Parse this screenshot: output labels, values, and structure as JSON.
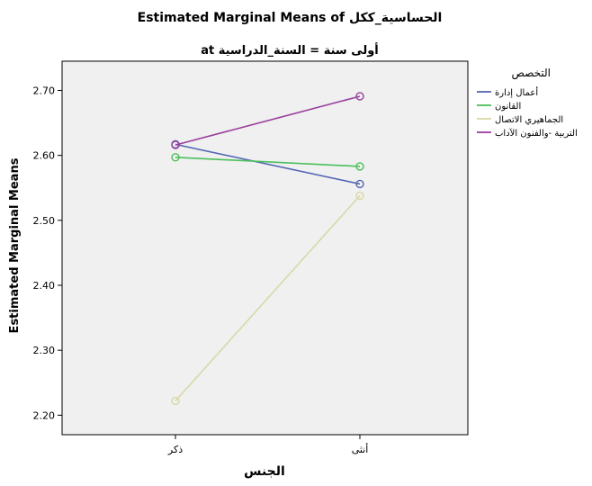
{
  "chart_data": {
    "type": "line",
    "title": "Estimated Marginal Means of الحساسية_ككل",
    "subtitle": "at أولى سنة = السنة_الدراسية",
    "xlabel": "الجنس",
    "ylabel": "Estimated Marginal Means",
    "categories": [
      "ذكر",
      "أنثى"
    ],
    "ylim": [
      2.17,
      2.745
    ],
    "yticks": [
      2.2,
      2.3,
      2.4,
      2.5,
      2.6,
      2.7
    ],
    "ytick_labels": [
      "2.20",
      "2.30",
      "2.40",
      "2.50",
      "2.60",
      "2.70"
    ],
    "grid": false,
    "legend": {
      "title": "التخصص",
      "placement": "right"
    },
    "series": [
      {
        "name": "أعمال إدارة",
        "color": "#5566b4",
        "values": [
          2.617,
          2.556
        ]
      },
      {
        "name": "القانون",
        "color": "#4cbf5c",
        "values": [
          2.597,
          2.583
        ]
      },
      {
        "name": "الجماهيري الاتصال",
        "color": "#d8d8a8",
        "values": [
          2.222,
          2.538
        ]
      },
      {
        "name": "التربية -والفنون الآداب",
        "color": "#9a3f9c",
        "values": [
          2.616,
          2.691
        ]
      }
    ]
  }
}
